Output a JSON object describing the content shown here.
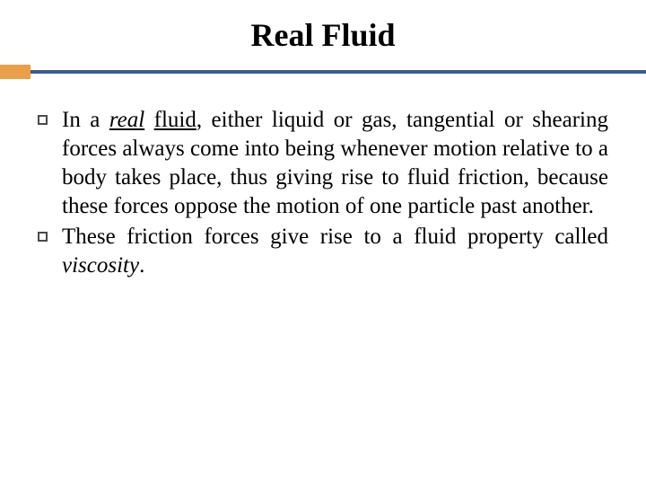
{
  "slide": {
    "title": "Real Fluid",
    "title_fontsize": 36,
    "title_color": "#000000",
    "title_weight": "bold",
    "background_color": "#ffffff",
    "separator": {
      "accent_block_color": "#e8a14a",
      "accent_block_width": 34,
      "accent_block_height": 16,
      "line_color": "#3c5a8f",
      "line_height": 4
    },
    "body_fontsize": 25,
    "body_color": "#000000",
    "body_align": "justify",
    "bullet_border_color": "#4a4a4a",
    "bullets": [
      {
        "runs": [
          {
            "text": "In a ",
            "style": "normal"
          },
          {
            "text": "real",
            "style": "italic-underline"
          },
          {
            "text": " ",
            "style": "normal"
          },
          {
            "text": "fluid",
            "style": "underline"
          },
          {
            "text": ", either liquid or gas, tangential or shearing forces always come into being whenever motion relative to a body takes place, thus giving rise to fluid friction, because these forces oppose the motion of one particle past another.",
            "style": "normal"
          }
        ]
      },
      {
        "runs": [
          {
            "text": "These friction forces give rise to a fluid property called ",
            "style": "normal"
          },
          {
            "text": "viscosity",
            "style": "italic"
          },
          {
            "text": ".",
            "style": "normal"
          }
        ]
      }
    ]
  }
}
